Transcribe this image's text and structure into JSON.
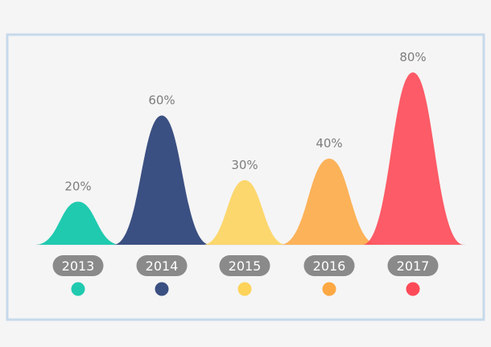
{
  "chart_data": {
    "type": "area",
    "title": "",
    "xlabel": "",
    "ylabel": "",
    "categories": [
      "2013",
      "2014",
      "2015",
      "2016",
      "2017"
    ],
    "values": [
      20,
      60,
      30,
      40,
      80
    ],
    "value_labels": [
      "20%",
      "60%",
      "30%",
      "40%",
      "80%"
    ],
    "ylim": [
      0,
      80
    ],
    "colors": [
      "#1fcaaf",
      "#3b5082",
      "#fdd35a",
      "#fda843",
      "#fe4a58"
    ],
    "grid": false,
    "legend": "none"
  }
}
